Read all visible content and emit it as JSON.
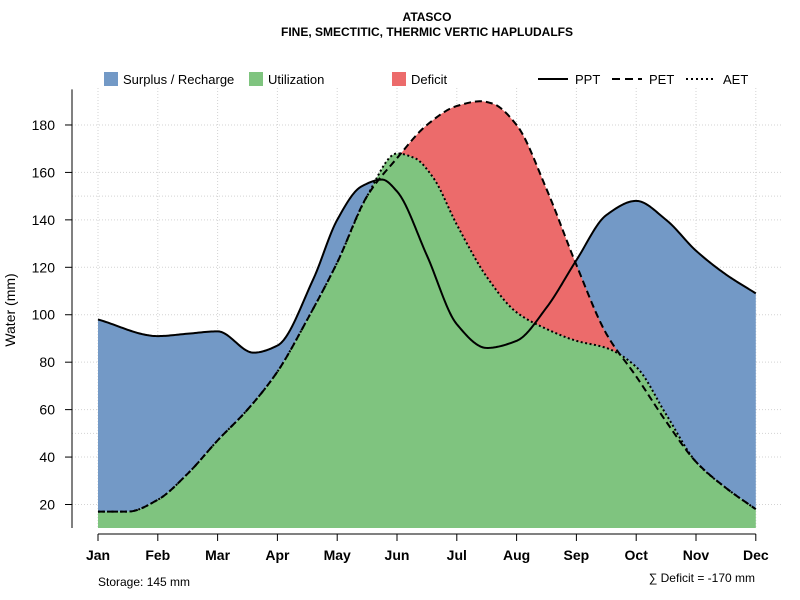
{
  "chart_data": {
    "type": "area",
    "title": "ATASCO",
    "subtitle": "FINE, SMECTITIC, THERMIC VERTIC HAPLUDALFS",
    "xlabel": "",
    "ylabel": "Water (mm)",
    "ylim": [
      10,
      195
    ],
    "yticks": [
      20,
      40,
      60,
      80,
      100,
      120,
      140,
      160,
      180
    ],
    "categories": [
      "Jan",
      "Feb",
      "Mar",
      "Apr",
      "May",
      "Jun",
      "Jul",
      "Aug",
      "Sep",
      "Oct",
      "Nov",
      "Dec"
    ],
    "x": [
      1,
      2,
      3,
      4,
      5,
      6,
      7,
      8,
      9,
      10,
      11,
      12
    ],
    "series": [
      {
        "name": "PPT",
        "line": "solid",
        "x": [
          1,
          2,
          2.5,
          3,
          3.6,
          4,
          4.6,
          5,
          5.4,
          5.75,
          6,
          6.5,
          7,
          7.5,
          8,
          8.5,
          9,
          9.5,
          10,
          10.5,
          11,
          11.5,
          12
        ],
        "values": [
          98,
          91,
          92,
          93,
          84,
          87,
          115,
          140,
          154,
          157,
          152,
          125,
          96,
          86,
          89,
          103,
          123,
          142,
          148,
          140,
          127,
          117,
          109
        ]
      },
      {
        "name": "PET",
        "line": "dashed",
        "x": [
          1,
          1.5,
          2,
          2.5,
          3,
          3.5,
          4,
          4.5,
          5,
          5.5,
          6,
          6.5,
          7,
          7.4,
          7.6,
          8,
          8.5,
          9,
          9.5,
          10,
          10.5,
          11,
          11.5,
          12
        ],
        "values": [
          17,
          17,
          22,
          33,
          47,
          60,
          76,
          98,
          122,
          150,
          166,
          180,
          188,
          190,
          189,
          180,
          153,
          121,
          92,
          74,
          55,
          38,
          27,
          18
        ]
      },
      {
        "name": "AET",
        "line": "dotted",
        "x": [
          1,
          1.5,
          2,
          2.5,
          3,
          3.5,
          4,
          4.5,
          5,
          5.5,
          6,
          6.3,
          6.6,
          7,
          7.5,
          8,
          8.5,
          9,
          9.5,
          10,
          10.5,
          11,
          11.5,
          12
        ],
        "values": [
          17,
          17,
          22,
          33,
          47,
          60,
          76,
          98,
          122,
          150,
          168,
          166,
          158,
          138,
          116,
          101,
          94,
          89,
          86,
          78,
          58,
          38,
          27,
          18
        ]
      }
    ],
    "areas": [
      {
        "name": "Surplus / Recharge",
        "color": "#7399C6"
      },
      {
        "name": "Utilization",
        "color": "#7FC47F"
      },
      {
        "name": "Deficit",
        "color": "#EC6B6B"
      }
    ],
    "legend": {
      "placement": "top",
      "entries": [
        {
          "label": "Surplus / Recharge",
          "kind": "fill",
          "color": "#7399C6"
        },
        {
          "label": "Utilization",
          "kind": "fill",
          "color": "#7FC47F"
        },
        {
          "label": "Deficit",
          "kind": "fill",
          "color": "#EC6B6B"
        },
        {
          "label": "PPT",
          "kind": "line",
          "dash": "solid"
        },
        {
          "label": "PET",
          "kind": "line",
          "dash": "dashed"
        },
        {
          "label": "AET",
          "kind": "line",
          "dash": "dotted"
        }
      ]
    },
    "annotations": {
      "storage": "Storage: 145 mm",
      "deficit": "∑ Deficit = -170 mm"
    },
    "grid": true,
    "extra_gridlines": [
      50,
      150
    ]
  }
}
